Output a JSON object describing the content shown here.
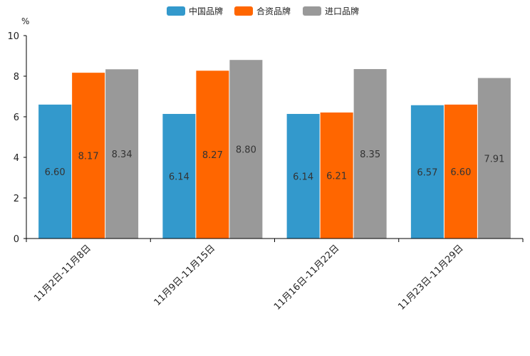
{
  "chart_data": {
    "type": "bar",
    "title": "",
    "unit_label": "%",
    "xlabel": "",
    "ylabel": "%",
    "ylim": [
      0,
      10
    ],
    "yticks": [
      0,
      2,
      4,
      6,
      8,
      10
    ],
    "grid": false,
    "legend_position": "top-center",
    "categories": [
      "11月2日-11月8日",
      "11月9日-11月15日",
      "11月16日-11月22日",
      "11月23日-11月29日"
    ],
    "series": [
      {
        "name": "中国品牌",
        "color": "#3399cc",
        "values": [
          6.6,
          6.14,
          6.14,
          6.57
        ]
      },
      {
        "name": "合资品牌",
        "color": "#ff6600",
        "values": [
          8.17,
          8.27,
          6.21,
          6.6
        ]
      },
      {
        "name": "进口品牌",
        "color": "#999999",
        "values": [
          8.34,
          8.8,
          8.35,
          7.91
        ]
      }
    ]
  }
}
